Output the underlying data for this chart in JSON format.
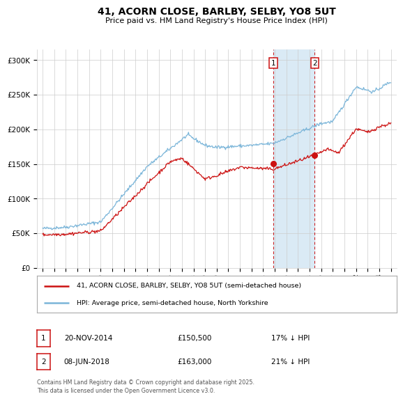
{
  "title": "41, ACORN CLOSE, BARLBY, SELBY, YO8 5UT",
  "subtitle": "Price paid vs. HM Land Registry's House Price Index (HPI)",
  "legend_line1": "41, ACORN CLOSE, BARLBY, SELBY, YO8 5UT (semi-detached house)",
  "legend_line2": "HPI: Average price, semi-detached house, North Yorkshire",
  "sale1_date": "20-NOV-2014",
  "sale1_price": "£150,500",
  "sale1_hpi": "17% ↓ HPI",
  "sale2_date": "08-JUN-2018",
  "sale2_price": "£163,000",
  "sale2_hpi": "21% ↓ HPI",
  "footer": "Contains HM Land Registry data © Crown copyright and database right 2025.\nThis data is licensed under the Open Government Licence v3.0.",
  "hpi_color": "#7ab5d9",
  "price_color": "#cc1111",
  "sale_dot_color": "#cc1111",
  "marker1_x": 2014.9,
  "marker2_x": 2018.45,
  "marker1_y": 150500,
  "marker2_y": 163000,
  "highlight_fill": "#daeaf5",
  "xlim": [
    1994.5,
    2025.5
  ],
  "ylim": [
    0,
    315000
  ],
  "yticks": [
    0,
    50000,
    100000,
    150000,
    200000,
    250000,
    300000
  ],
  "ytick_labels": [
    "£0",
    "£50K",
    "£100K",
    "£150K",
    "£200K",
    "£250K",
    "£300K"
  ],
  "xtick_years": [
    1995,
    1996,
    1997,
    1998,
    1999,
    2000,
    2001,
    2002,
    2003,
    2004,
    2005,
    2006,
    2007,
    2008,
    2009,
    2010,
    2011,
    2012,
    2013,
    2014,
    2015,
    2016,
    2017,
    2018,
    2019,
    2020,
    2021,
    2022,
    2023,
    2024,
    2025
  ]
}
